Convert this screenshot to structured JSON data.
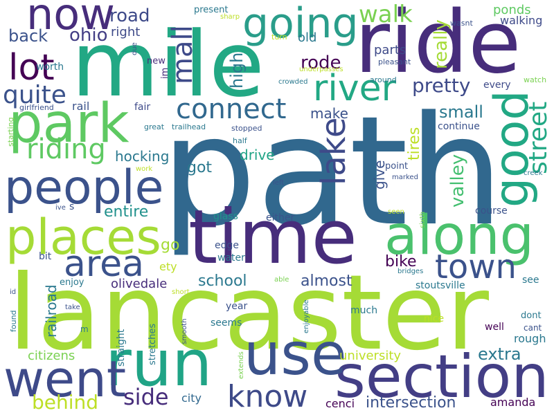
{
  "palette": {
    "dark_purple": "#46327e",
    "indigo": "#3e4a89",
    "blue": "#31688e",
    "teal": "#26828e",
    "green_teal": "#1f9e89",
    "green": "#35b779",
    "light_green": "#6ece58",
    "lime": "#b5de2b",
    "purple": "#482878",
    "deep_purple": "#440154"
  },
  "words": [
    {
      "text": "path",
      "color": "#31688e"
    },
    {
      "text": "lancaster",
      "color": "#a5db36"
    },
    {
      "text": "mile",
      "color": "#22a884"
    },
    {
      "text": "ride",
      "color": "#472d7b"
    },
    {
      "text": "time",
      "color": "#472d7b"
    },
    {
      "text": "section",
      "color": "#433e85"
    },
    {
      "text": "run",
      "color": "#20a486"
    },
    {
      "text": "use",
      "color": "#3b528b"
    },
    {
      "text": "park",
      "color": "#5ec962"
    },
    {
      "text": "along",
      "color": "#4ac16d"
    },
    {
      "text": "went",
      "color": "#3e4a89"
    },
    {
      "text": "places",
      "color": "#a5db36"
    },
    {
      "text": "people",
      "color": "#3b528b"
    },
    {
      "text": "good",
      "color": "#22a884"
    },
    {
      "text": "now",
      "color": "#472d7b"
    },
    {
      "text": "going",
      "color": "#2a9d8a"
    },
    {
      "text": "river",
      "color": "#22a884"
    },
    {
      "text": "lot",
      "color": "#440154"
    },
    {
      "text": "connect",
      "color": "#31688e"
    },
    {
      "text": "area",
      "color": "#3b528b"
    },
    {
      "text": "town",
      "color": "#3b528b"
    },
    {
      "text": "know",
      "color": "#3e4a89"
    },
    {
      "text": "lake",
      "color": "#3e4a89"
    },
    {
      "text": "mall",
      "color": "#3e4a89"
    },
    {
      "text": "riding",
      "color": "#5ec962"
    },
    {
      "text": "quite",
      "color": "#3b528b"
    },
    {
      "text": "street",
      "color": "#22a884"
    },
    {
      "text": "walk",
      "color": "#7ad151"
    },
    {
      "text": "pretty",
      "color": "#3e4a89"
    },
    {
      "text": "side",
      "color": "#472d7b"
    },
    {
      "text": "behind",
      "color": "#bddf26"
    },
    {
      "text": "ohio",
      "color": "#433e85"
    },
    {
      "text": "back",
      "color": "#3b528b"
    },
    {
      "text": "road",
      "color": "#3e4a89"
    },
    {
      "text": "rode",
      "color": "#440154"
    },
    {
      "text": "high",
      "color": "#2a788e"
    },
    {
      "text": "really",
      "color": "#a5db36"
    },
    {
      "text": "valley",
      "color": "#44bf70"
    },
    {
      "text": "small",
      "color": "#2a788e"
    },
    {
      "text": "extra",
      "color": "#2a788e"
    },
    {
      "text": "intersection",
      "color": "#3b528b"
    },
    {
      "text": "school",
      "color": "#2a788e"
    },
    {
      "text": "almost",
      "color": "#3b528b"
    },
    {
      "text": "bike",
      "color": "#440154"
    },
    {
      "text": "tires",
      "color": "#bddf26"
    },
    {
      "text": "go",
      "color": "#a5db36"
    },
    {
      "text": "got",
      "color": "#2a788e"
    },
    {
      "text": "entire",
      "color": "#21918c"
    },
    {
      "text": "hocking",
      "color": "#2a788e"
    },
    {
      "text": "make",
      "color": "#3b528b"
    },
    {
      "text": "give",
      "color": "#3b528b"
    },
    {
      "text": "drive",
      "color": "#20a486"
    },
    {
      "text": "parts",
      "color": "#3e4a89"
    },
    {
      "text": "ponds",
      "color": "#5ec962"
    },
    {
      "text": "walking",
      "color": "#3e4a89"
    },
    {
      "text": "old",
      "color": "#2a788e"
    },
    {
      "text": "right",
      "color": "#3e4a89"
    },
    {
      "text": "railroad",
      "color": "#2a788e"
    },
    {
      "text": "citizens",
      "color": "#7ad151"
    },
    {
      "text": "university",
      "color": "#bddf26"
    },
    {
      "text": "olivedale",
      "color": "#472d7b"
    },
    {
      "text": "rough",
      "color": "#2a788e"
    },
    {
      "text": "amanda",
      "color": "#440154"
    },
    {
      "text": "cenci",
      "color": "#440154"
    },
    {
      "text": "city",
      "color": "#31688e"
    },
    {
      "text": "stoutsville",
      "color": "#2a788e"
    },
    {
      "text": "course",
      "color": "#3b528b"
    },
    {
      "text": "continue",
      "color": "#3b528b"
    },
    {
      "text": "every",
      "color": "#3e4a89"
    },
    {
      "text": "worth",
      "color": "#2a788e"
    },
    {
      "text": "rail",
      "color": "#3b528b"
    },
    {
      "text": "fair",
      "color": "#3e4a89"
    },
    {
      "text": "ety",
      "color": "#bddf26"
    },
    {
      "text": "edge",
      "color": "#3b528b"
    },
    {
      "text": "water",
      "color": "#2a788e"
    },
    {
      "text": "glass",
      "color": "#21918c"
    },
    {
      "text": "either",
      "color": "#3b528b"
    },
    {
      "text": "bit",
      "color": "#3b528b"
    },
    {
      "text": "enjoy",
      "color": "#2a788e"
    },
    {
      "text": "year",
      "color": "#3b528b"
    },
    {
      "text": "much",
      "color": "#2a788e"
    },
    {
      "text": "seems",
      "color": "#2a788e"
    },
    {
      "text": "nice",
      "color": "#bddf26"
    },
    {
      "text": "well",
      "color": "#440154"
    },
    {
      "text": "see",
      "color": "#2a788e"
    },
    {
      "text": "dont",
      "color": "#2a788e"
    },
    {
      "text": "cant",
      "color": "#3b528b"
    },
    {
      "text": "straight",
      "color": "#2a788e"
    },
    {
      "text": "stretches",
      "color": "#2a788e"
    },
    {
      "text": "point",
      "color": "#3b528b"
    },
    {
      "text": "s",
      "color": "#3b528b"
    },
    {
      "text": "present",
      "color": "#2a788e"
    },
    {
      "text": "new",
      "color": "#472d7b"
    },
    {
      "text": "im",
      "color": "#472d7b"
    },
    {
      "text": "pleasant",
      "color": "#3b528b"
    },
    {
      "text": "around",
      "color": "#2a788e"
    },
    {
      "text": "watch",
      "color": "#7ad151"
    },
    {
      "text": "wasnt",
      "color": "#3b528b"
    },
    {
      "text": "turn",
      "color": "#bddf26"
    },
    {
      "text": "sharp",
      "color": "#bddf26"
    },
    {
      "text": "due",
      "color": "#3b528b"
    },
    {
      "text": "crowded",
      "color": "#2a788e"
    },
    {
      "text": "underpasses",
      "color": "#bddf26"
    },
    {
      "text": "girlfriend",
      "color": "#3b528b"
    },
    {
      "text": "starting",
      "color": "#7ad151"
    },
    {
      "text": "great",
      "color": "#2a788e"
    },
    {
      "text": "trailhead",
      "color": "#2a788e"
    },
    {
      "text": "stopped",
      "color": "#3b528b"
    },
    {
      "text": "half",
      "color": "#2a788e"
    },
    {
      "text": "work",
      "color": "#bddf26"
    },
    {
      "text": "ive",
      "color": "#3b528b"
    },
    {
      "text": "left",
      "color": "#3b528b"
    },
    {
      "text": "marked",
      "color": "#3b528b"
    },
    {
      "text": "creek",
      "color": "#2a788e"
    },
    {
      "text": "seen",
      "color": "#bddf26"
    },
    {
      "text": "sixth",
      "color": "#7ad151"
    },
    {
      "text": "able",
      "color": "#7ad151"
    },
    {
      "text": "bridges",
      "color": "#2a788e"
    },
    {
      "text": "id",
      "color": "#3b528b"
    },
    {
      "text": "found",
      "color": "#2a788e"
    },
    {
      "text": "take",
      "color": "#3b528b"
    },
    {
      "text": "m",
      "color": "#2a788e"
    },
    {
      "text": "short",
      "color": "#bddf26"
    },
    {
      "text": "smooth",
      "color": "#3b528b"
    },
    {
      "text": "enjoyable",
      "color": "#2a788e"
    },
    {
      "text": "extends",
      "color": "#7ad151"
    }
  ]
}
